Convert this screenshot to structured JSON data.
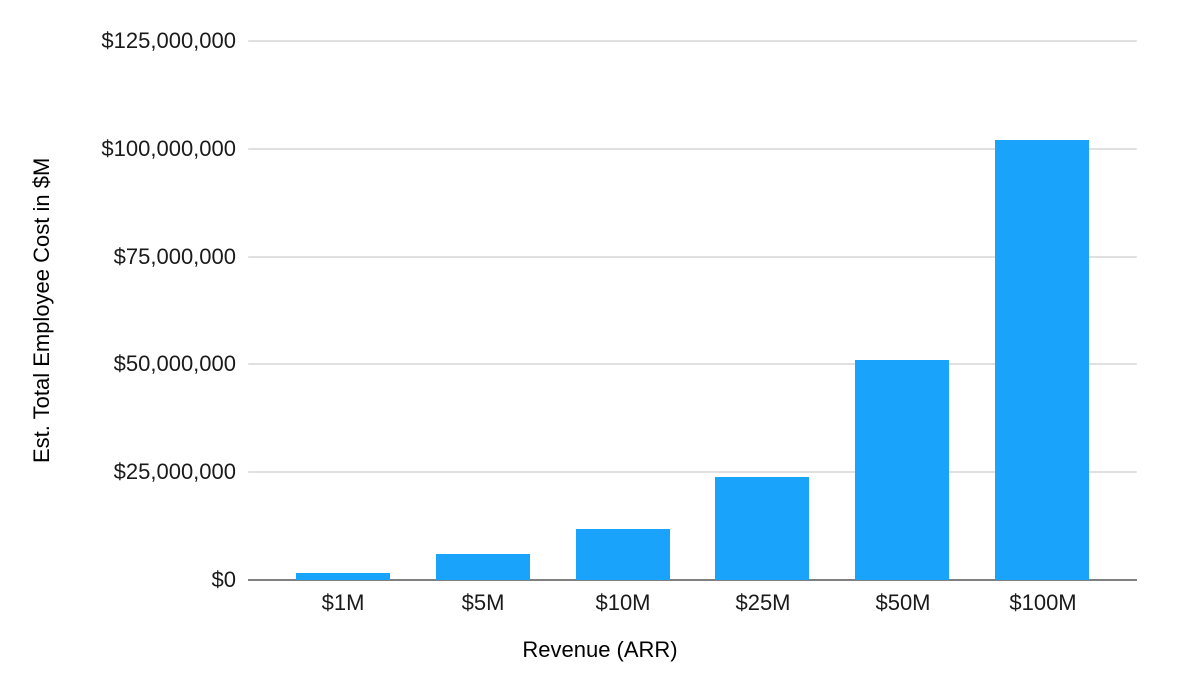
{
  "chart_data": {
    "type": "bar",
    "title": "",
    "xlabel": "Revenue (ARR)",
    "ylabel": "Est. Total Employee Cost in $M",
    "categories": [
      "$1M",
      "$5M",
      "$10M",
      "$25M",
      "$50M",
      "$100M"
    ],
    "values": [
      1700000,
      5950000,
      11900000,
      23800000,
      51000000,
      102000000
    ],
    "ylim": [
      0,
      125000000
    ],
    "y_ticks": [
      0,
      25000000,
      50000000,
      75000000,
      100000000,
      125000000
    ],
    "y_tick_labels": [
      "$0",
      "$25,000,000",
      "$50,000,000",
      "$75,000,000",
      "$100,000,000",
      "$125,000,000"
    ],
    "grid": true,
    "legend_position": "none",
    "colors": {
      "bar": "#1aa3fa",
      "gridline": "#e0e0e0",
      "axis_line": "#808080",
      "label_text": "#1a1a1a"
    }
  }
}
